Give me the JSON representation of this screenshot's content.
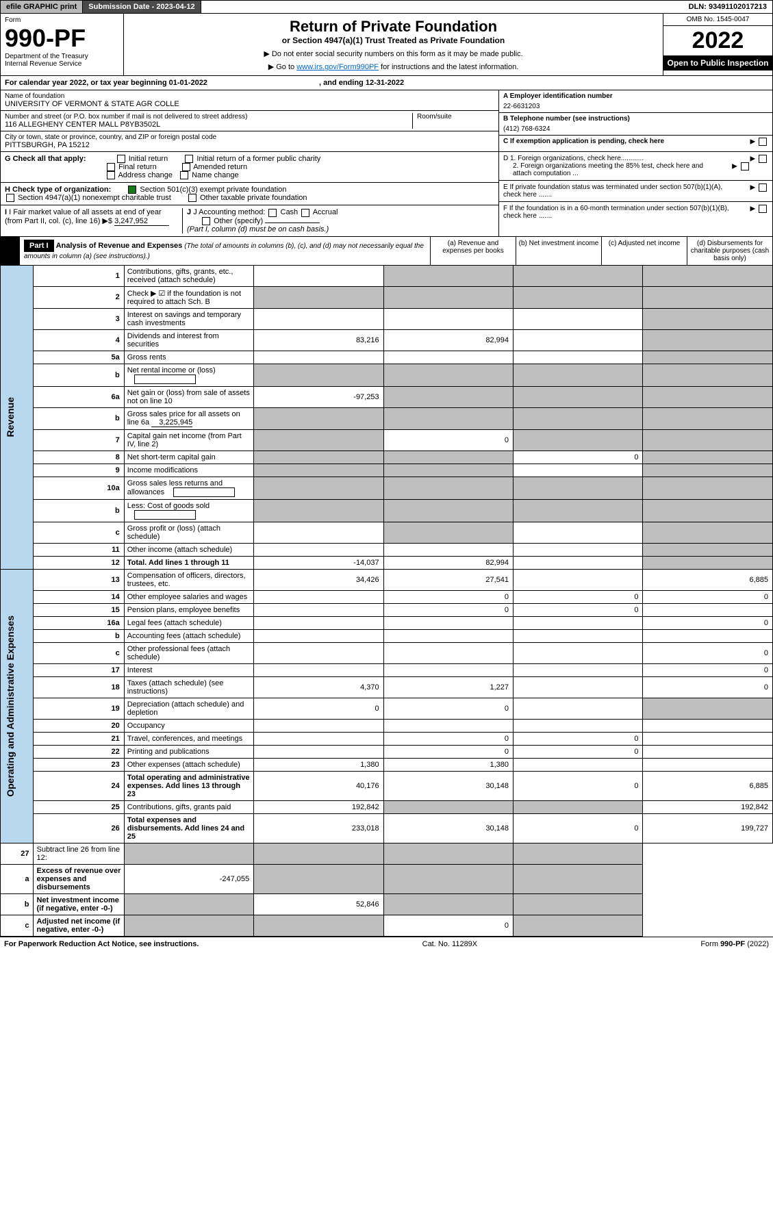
{
  "topbar": {
    "efile": "efile GRAPHIC print",
    "subdate_label": "Submission Date - ",
    "subdate": "2023-04-12",
    "dln_label": "DLN: ",
    "dln": "93491102017213"
  },
  "header": {
    "form_label": "Form",
    "form_no": "990-PF",
    "dept1": "Department of the Treasury",
    "dept2": "Internal Revenue Service",
    "title": "Return of Private Foundation",
    "subtitle": "or Section 4947(a)(1) Trust Treated as Private Foundation",
    "note1": "▶ Do not enter social security numbers on this form as it may be made public.",
    "note2_pre": "▶ Go to ",
    "note2_link": "www.irs.gov/Form990PF",
    "note2_post": " for instructions and the latest information.",
    "omb": "OMB No. 1545-0047",
    "year": "2022",
    "open": "Open to Public Inspection"
  },
  "calrow": {
    "text_pre": "For calendar year 2022, or tax year beginning ",
    "begin": "01-01-2022",
    "text_mid": " , and ending ",
    "end": "12-31-2022"
  },
  "info": {
    "name_label": "Name of foundation",
    "name": "UNIVERSITY OF VERMONT & STATE AGR COLLE",
    "addr_label": "Number and street (or P.O. box number if mail is not delivered to street address)",
    "addr": "116 ALLEGHENY CENTER MALL P8YB3502L",
    "room_label": "Room/suite",
    "city_label": "City or town, state or province, country, and ZIP or foreign postal code",
    "city": "PITTSBURGH, PA  15212",
    "a_label": "A Employer identification number",
    "a_val": "22-6631203",
    "b_label": "B Telephone number (see instructions)",
    "b_val": "(412) 768-6324",
    "c_label": "C If exemption application is pending, check here"
  },
  "checks": {
    "g_label": "G Check all that apply:",
    "g_initial": "Initial return",
    "g_initial_former": "Initial return of a former public charity",
    "g_final": "Final return",
    "g_amended": "Amended return",
    "g_address": "Address change",
    "g_name": "Name change",
    "h_label": "H Check type of organization:",
    "h_501c3": "Section 501(c)(3) exempt private foundation",
    "h_4947": "Section 4947(a)(1) nonexempt charitable trust",
    "h_other": "Other taxable private foundation",
    "i_label": "I Fair market value of all assets at end of year (from Part II, col. (c), line 16)",
    "i_val": "3,247,952",
    "j_label": "J Accounting method:",
    "j_cash": "Cash",
    "j_accrual": "Accrual",
    "j_other": "Other (specify)",
    "j_note": "(Part I, column (d) must be on cash basis.)",
    "d1": "D 1. Foreign organizations, check here............",
    "d2": "2. Foreign organizations meeting the 85% test, check here and attach computation ...",
    "e": "E  If private foundation status was terminated under section 507(b)(1)(A), check here .......",
    "f": "F  If the foundation is in a 60-month termination under section 507(b)(1)(B), check here .......",
    "h_501c3_checked": true
  },
  "part1": {
    "label": "Part I",
    "title": "Analysis of Revenue and Expenses",
    "title_note": " (The total of amounts in columns (b), (c), and (d) may not necessarily equal the amounts in column (a) (see instructions).)",
    "col_a": "(a)   Revenue and expenses per books",
    "col_b": "(b)   Net investment income",
    "col_c": "(c)   Adjusted net income",
    "col_d": "(d)   Disbursements for charitable purposes (cash basis only)"
  },
  "sidelabels": {
    "revenue": "Revenue",
    "expenses": "Operating and Administrative Expenses"
  },
  "rows": [
    {
      "n": "1",
      "desc": "Contributions, gifts, grants, etc., received (attach schedule)",
      "a": "",
      "b": "",
      "c": "",
      "d": "",
      "grey": [
        "b",
        "c",
        "d"
      ]
    },
    {
      "n": "2",
      "desc": "Check ▶ ☑ if the foundation is not required to attach Sch. B",
      "a": "",
      "b": "",
      "c": "",
      "d": "",
      "grey": [
        "a",
        "b",
        "c",
        "d"
      ],
      "bold_not": true
    },
    {
      "n": "3",
      "desc": "Interest on savings and temporary cash investments",
      "a": "",
      "b": "",
      "c": "",
      "d": "",
      "grey": [
        "d"
      ]
    },
    {
      "n": "4",
      "desc": "Dividends and interest from securities",
      "a": "83,216",
      "b": "82,994",
      "c": "",
      "d": "",
      "grey": [
        "d"
      ]
    },
    {
      "n": "5a",
      "desc": "Gross rents",
      "a": "",
      "b": "",
      "c": "",
      "d": "",
      "grey": [
        "d"
      ]
    },
    {
      "n": "b",
      "desc": "Net rental income or (loss)",
      "a": "",
      "b": "",
      "c": "",
      "d": "",
      "grey": [
        "a",
        "b",
        "c",
        "d"
      ],
      "inline_box": true
    },
    {
      "n": "6a",
      "desc": "Net gain or (loss) from sale of assets not on line 10",
      "a": "-97,253",
      "b": "",
      "c": "",
      "d": "",
      "grey": [
        "b",
        "c",
        "d"
      ]
    },
    {
      "n": "b",
      "desc": "Gross sales price for all assets on line 6a",
      "a": "",
      "b": "",
      "c": "",
      "d": "",
      "grey": [
        "a",
        "b",
        "c",
        "d"
      ],
      "inline_val": "3,225,945"
    },
    {
      "n": "7",
      "desc": "Capital gain net income (from Part IV, line 2)",
      "a": "",
      "b": "0",
      "c": "",
      "d": "",
      "grey": [
        "a",
        "c",
        "d"
      ]
    },
    {
      "n": "8",
      "desc": "Net short-term capital gain",
      "a": "",
      "b": "",
      "c": "0",
      "d": "",
      "grey": [
        "a",
        "b",
        "d"
      ]
    },
    {
      "n": "9",
      "desc": "Income modifications",
      "a": "",
      "b": "",
      "c": "",
      "d": "",
      "grey": [
        "a",
        "b",
        "d"
      ]
    },
    {
      "n": "10a",
      "desc": "Gross sales less returns and allowances",
      "a": "",
      "b": "",
      "c": "",
      "d": "",
      "grey": [
        "a",
        "b",
        "c",
        "d"
      ],
      "inline_box": true
    },
    {
      "n": "b",
      "desc": "Less: Cost of goods sold",
      "a": "",
      "b": "",
      "c": "",
      "d": "",
      "grey": [
        "a",
        "b",
        "c",
        "d"
      ],
      "inline_box": true
    },
    {
      "n": "c",
      "desc": "Gross profit or (loss) (attach schedule)",
      "a": "",
      "b": "",
      "c": "",
      "d": "",
      "grey": [
        "b",
        "d"
      ]
    },
    {
      "n": "11",
      "desc": "Other income (attach schedule)",
      "a": "",
      "b": "",
      "c": "",
      "d": "",
      "grey": [
        "d"
      ]
    },
    {
      "n": "12",
      "desc": "Total. Add lines 1 through 11",
      "a": "-14,037",
      "b": "82,994",
      "c": "",
      "d": "",
      "grey": [
        "d"
      ],
      "bold": true
    }
  ],
  "exp_rows": [
    {
      "n": "13",
      "desc": "Compensation of officers, directors, trustees, etc.",
      "a": "34,426",
      "b": "27,541",
      "c": "",
      "d": "6,885"
    },
    {
      "n": "14",
      "desc": "Other employee salaries and wages",
      "a": "",
      "b": "0",
      "c": "0",
      "d": "0"
    },
    {
      "n": "15",
      "desc": "Pension plans, employee benefits",
      "a": "",
      "b": "0",
      "c": "0",
      "d": ""
    },
    {
      "n": "16a",
      "desc": "Legal fees (attach schedule)",
      "a": "",
      "b": "",
      "c": "",
      "d": "0"
    },
    {
      "n": "b",
      "desc": "Accounting fees (attach schedule)",
      "a": "",
      "b": "",
      "c": "",
      "d": ""
    },
    {
      "n": "c",
      "desc": "Other professional fees (attach schedule)",
      "a": "",
      "b": "",
      "c": "",
      "d": "0"
    },
    {
      "n": "17",
      "desc": "Interest",
      "a": "",
      "b": "",
      "c": "",
      "d": "0"
    },
    {
      "n": "18",
      "desc": "Taxes (attach schedule) (see instructions)",
      "a": "4,370",
      "b": "1,227",
      "c": "",
      "d": "0"
    },
    {
      "n": "19",
      "desc": "Depreciation (attach schedule) and depletion",
      "a": "0",
      "b": "0",
      "c": "",
      "d": "",
      "grey": [
        "d"
      ]
    },
    {
      "n": "20",
      "desc": "Occupancy",
      "a": "",
      "b": "",
      "c": "",
      "d": ""
    },
    {
      "n": "21",
      "desc": "Travel, conferences, and meetings",
      "a": "",
      "b": "0",
      "c": "0",
      "d": ""
    },
    {
      "n": "22",
      "desc": "Printing and publications",
      "a": "",
      "b": "0",
      "c": "0",
      "d": ""
    },
    {
      "n": "23",
      "desc": "Other expenses (attach schedule)",
      "a": "1,380",
      "b": "1,380",
      "c": "",
      "d": ""
    },
    {
      "n": "24",
      "desc": "Total operating and administrative expenses. Add lines 13 through 23",
      "a": "40,176",
      "b": "30,148",
      "c": "0",
      "d": "6,885",
      "bold": true
    },
    {
      "n": "25",
      "desc": "Contributions, gifts, grants paid",
      "a": "192,842",
      "b": "",
      "c": "",
      "d": "192,842",
      "grey": [
        "b",
        "c"
      ]
    },
    {
      "n": "26",
      "desc": "Total expenses and disbursements. Add lines 24 and 25",
      "a": "233,018",
      "b": "30,148",
      "c": "0",
      "d": "199,727",
      "bold": true
    }
  ],
  "final_rows": [
    {
      "n": "27",
      "desc": "Subtract line 26 from line 12:",
      "a": "",
      "b": "",
      "c": "",
      "d": "",
      "grey": [
        "a",
        "b",
        "c",
        "d"
      ]
    },
    {
      "n": "a",
      "desc": "Excess of revenue over expenses and disbursements",
      "a": "-247,055",
      "b": "",
      "c": "",
      "d": "",
      "grey": [
        "b",
        "c",
        "d"
      ],
      "bold": true
    },
    {
      "n": "b",
      "desc": "Net investment income (if negative, enter -0-)",
      "a": "",
      "b": "52,846",
      "c": "",
      "d": "",
      "grey": [
        "a",
        "c",
        "d"
      ],
      "bold": true
    },
    {
      "n": "c",
      "desc": "Adjusted net income (if negative, enter -0-)",
      "a": "",
      "b": "",
      "c": "0",
      "d": "",
      "grey": [
        "a",
        "b",
        "d"
      ],
      "bold": true
    }
  ],
  "footer": {
    "left": "For Paperwork Reduction Act Notice, see instructions.",
    "mid": "Cat. No. 11289X",
    "right": "Form 990-PF (2022)"
  },
  "colors": {
    "header_grey": "#b8b8b8",
    "header_dark": "#4a4a4a",
    "side_blue": "#b8d8f0",
    "cell_grey": "#bfbfbf",
    "link": "#0066cc",
    "check_green": "#1a7a1a"
  }
}
